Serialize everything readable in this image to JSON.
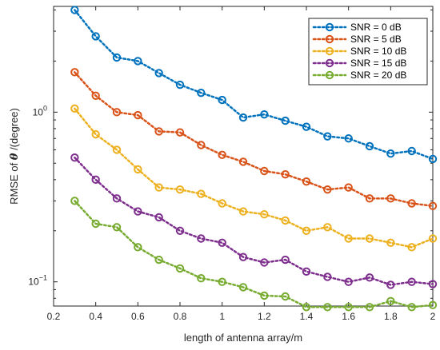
{
  "chart_data": {
    "type": "line",
    "xlabel": "length of antenna array/m",
    "ylabel_prefix": "RMSE of ",
    "ylabel_symbol": "θ",
    "ylabel_suffix": " /(degree)",
    "xlim": [
      0.2,
      2.0
    ],
    "ylim": [
      0.072,
      4.2
    ],
    "yscale": "log",
    "x_ticks": [
      0.2,
      0.4,
      0.6,
      0.8,
      1.0,
      1.2,
      1.4,
      1.6,
      1.8,
      2.0
    ],
    "x_tick_labels": [
      "0.2",
      "0.4",
      "0.6",
      "0.8",
      "1",
      "1.2",
      "1.4",
      "1.6",
      "1.8",
      "2"
    ],
    "y_ticks": [
      {
        "value": 1,
        "base": "10",
        "exp": "0"
      },
      {
        "value": 0.1,
        "base": "10",
        "exp": "−1"
      }
    ],
    "legend_position": "top-right",
    "grid": false,
    "x": [
      0.3,
      0.4,
      0.5,
      0.6,
      0.7,
      0.8,
      0.9,
      1.0,
      1.1,
      1.2,
      1.3,
      1.4,
      1.5,
      1.6,
      1.7,
      1.8,
      1.9,
      2.0
    ],
    "series": [
      {
        "name": "SNR = 0 dB",
        "color": "#0072BD",
        "values": [
          4.0,
          2.8,
          2.1,
          2.0,
          1.7,
          1.45,
          1.3,
          1.18,
          0.93,
          0.97,
          0.89,
          0.82,
          0.72,
          0.7,
          0.63,
          0.57,
          0.59,
          0.53
        ]
      },
      {
        "name": "SNR = 5 dB",
        "color": "#D95319",
        "values": [
          1.72,
          1.25,
          1.0,
          0.96,
          0.77,
          0.76,
          0.64,
          0.56,
          0.51,
          0.45,
          0.43,
          0.39,
          0.35,
          0.36,
          0.31,
          0.31,
          0.29,
          0.28
        ]
      },
      {
        "name": "SNR = 10 dB",
        "color": "#EDB120",
        "values": [
          1.05,
          0.74,
          0.6,
          0.46,
          0.36,
          0.35,
          0.33,
          0.29,
          0.26,
          0.25,
          0.23,
          0.2,
          0.21,
          0.18,
          0.18,
          0.17,
          0.16,
          0.18
        ]
      },
      {
        "name": "SNR = 15 dB",
        "color": "#7E2F8E",
        "values": [
          0.54,
          0.4,
          0.31,
          0.26,
          0.24,
          0.2,
          0.18,
          0.17,
          0.14,
          0.13,
          0.135,
          0.115,
          0.107,
          0.1,
          0.106,
          0.096,
          0.1,
          0.097
        ]
      },
      {
        "name": "SNR = 20 dB",
        "color": "#77AC30",
        "values": [
          0.3,
          0.22,
          0.21,
          0.16,
          0.135,
          0.12,
          0.105,
          0.1,
          0.093,
          0.083,
          0.082,
          0.071,
          0.071,
          0.071,
          0.071,
          0.077,
          0.071,
          0.073
        ]
      }
    ]
  }
}
